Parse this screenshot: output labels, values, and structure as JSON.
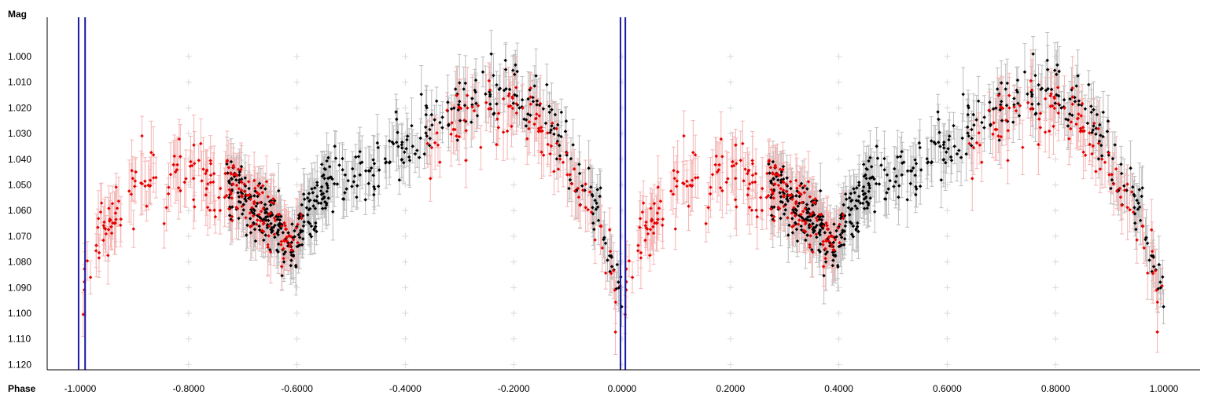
{
  "chart_data": {
    "type": "scatter",
    "title": "",
    "xlabel": "Phase",
    "ylabel": "Mag",
    "xlim": [
      -1.0,
      1.0
    ],
    "ylim": [
      1.12,
      0.986
    ],
    "y_inverted": true,
    "x_ticks": [
      -1.0,
      -0.8,
      -0.6,
      -0.4,
      -0.2,
      0.0,
      0.2,
      0.4,
      0.6,
      0.8,
      1.0
    ],
    "x_tick_labels": [
      "-1.0000",
      "-0.8000",
      "-0.6000",
      "-0.4000",
      "-0.2000",
      "0.0000",
      "0.2000",
      "0.4000",
      "0.6000",
      "0.8000",
      "1.0000"
    ],
    "y_ticks": [
      1.0,
      1.01,
      1.02,
      1.03,
      1.04,
      1.05,
      1.06,
      1.07,
      1.08,
      1.09,
      1.1,
      1.11,
      1.12
    ],
    "y_tick_labels": [
      "1.000",
      "1.010",
      "1.020",
      "1.030",
      "1.040",
      "1.050",
      "1.060",
      "1.070",
      "1.080",
      "1.090",
      "1.100",
      "1.110",
      "1.120"
    ],
    "grid": "cross-markers",
    "grid_color": "#d9d9d9",
    "marker_lines": [
      -1.003,
      -0.991,
      -0.003,
      0.006
    ],
    "marker_line_color": "#1a1aa6",
    "phase_curve": {
      "phase": [
        0.0,
        0.02,
        0.04,
        0.06,
        0.08,
        0.1,
        0.14,
        0.2,
        0.26,
        0.3,
        0.34,
        0.38,
        0.4,
        0.42,
        0.46,
        0.5,
        0.55,
        0.6,
        0.66,
        0.72,
        0.76,
        0.8,
        0.84,
        0.88,
        0.92,
        0.95,
        0.97,
        1.0
      ],
      "mag": [
        1.095,
        1.082,
        1.07,
        1.062,
        1.055,
        1.05,
        1.047,
        1.044,
        1.048,
        1.055,
        1.062,
        1.07,
        1.074,
        1.06,
        1.05,
        1.048,
        1.042,
        1.035,
        1.025,
        1.017,
        1.013,
        1.015,
        1.02,
        1.03,
        1.045,
        1.06,
        1.072,
        1.095
      ]
    },
    "series": [
      {
        "color": "#000000",
        "error_color": "#bdbdbd",
        "phase_ranges": [
          [
            0.27,
            0.46
          ],
          [
            0.45,
            1.0
          ]
        ],
        "count": 480,
        "scatter": 0.006,
        "error": 0.008
      },
      {
        "color": "#e60000",
        "error_color": "#f4b6b6",
        "phase_ranges": [
          [
            0.0,
            0.27
          ],
          [
            0.27,
            0.41
          ],
          [
            0.64,
            1.0
          ]
        ],
        "count": 330,
        "scatter": 0.006,
        "error": 0.009
      }
    ]
  }
}
